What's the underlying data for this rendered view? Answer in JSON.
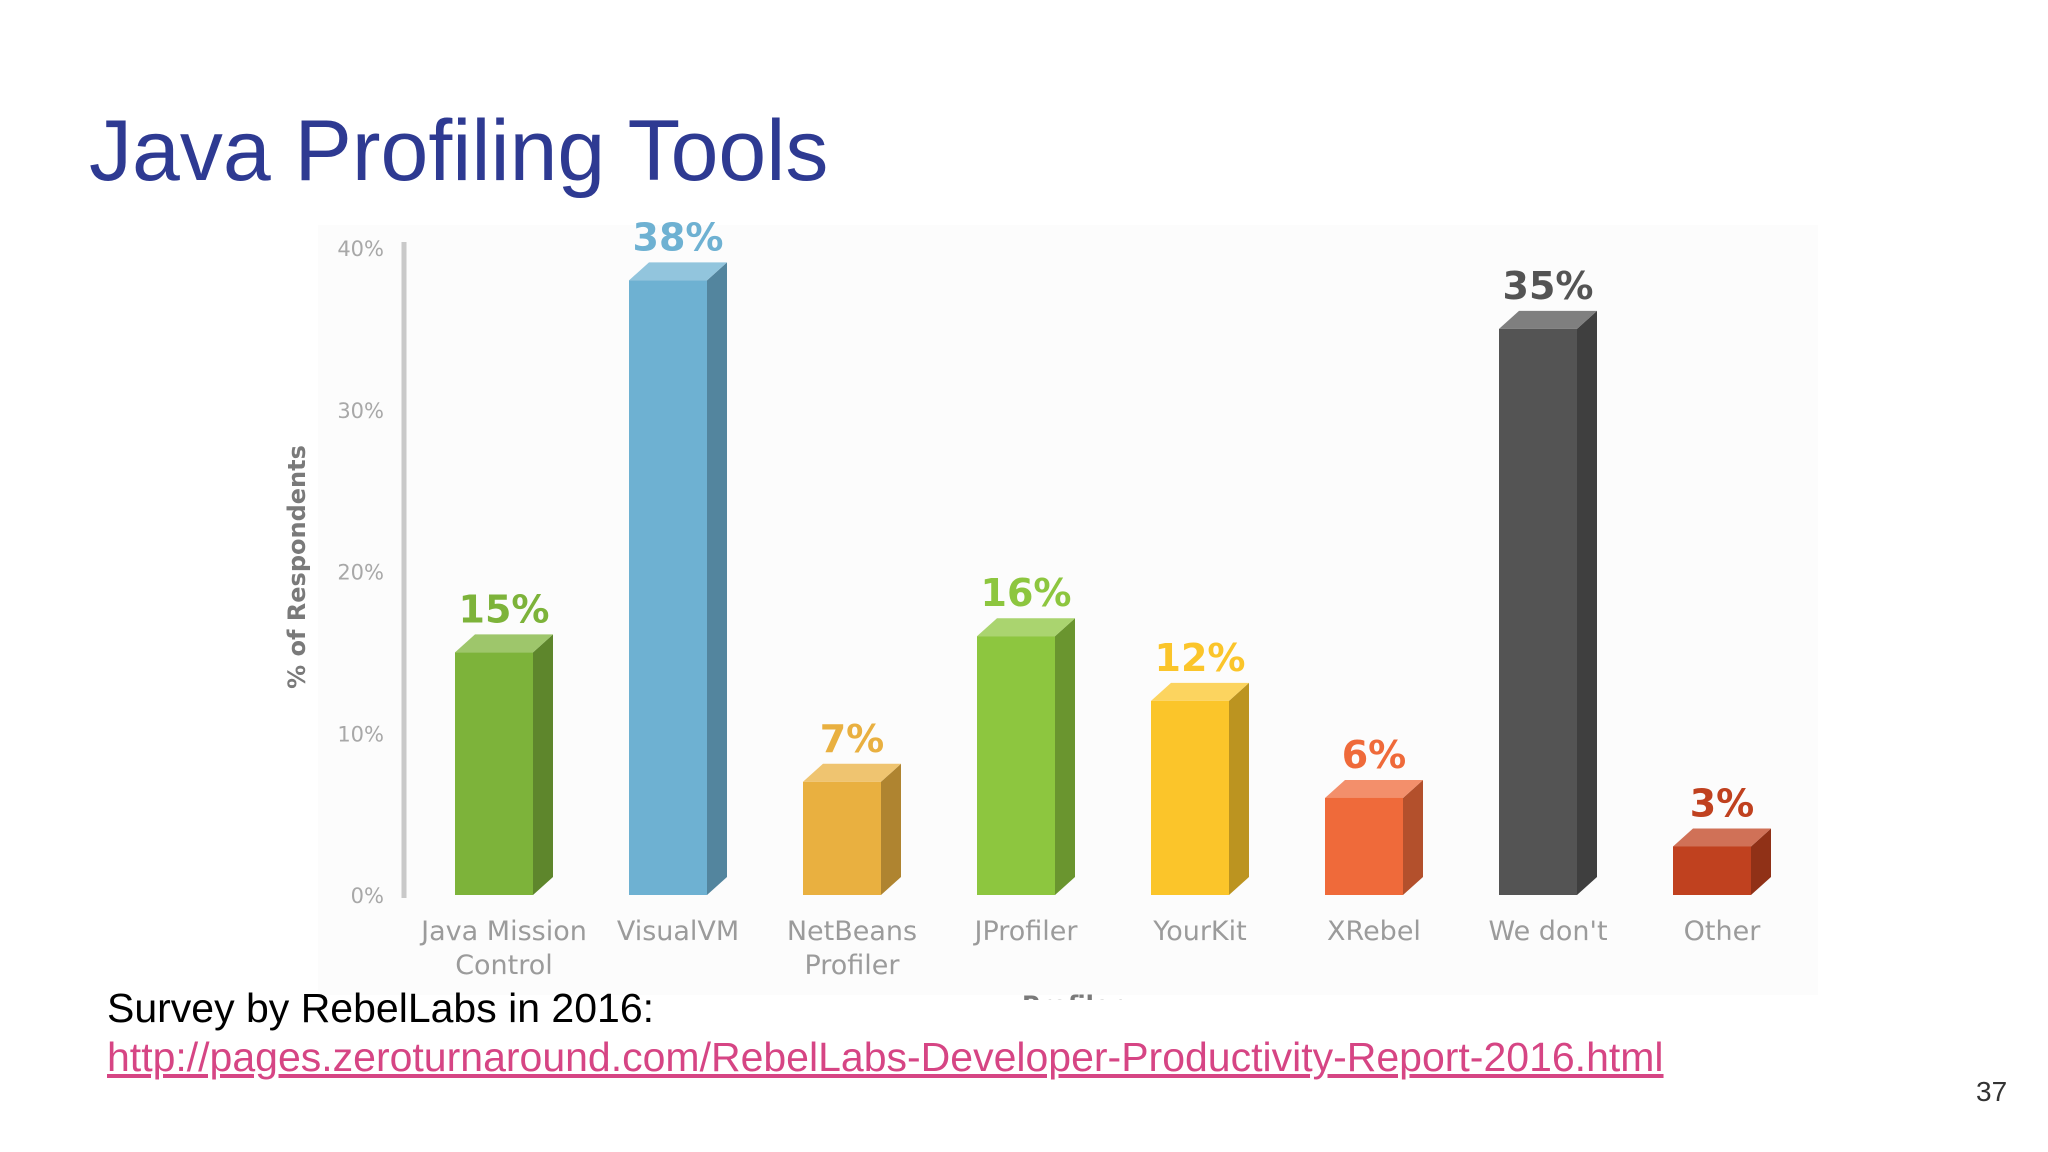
{
  "slide": {
    "title": "Java Profiling Tools",
    "source_label": "Survey by RebelLabs in 2016:",
    "source_link": "http://pages.zeroturnaround.com/RebelLabs-Developer-Productivity-Report-2016.html",
    "page_number": "37",
    "link_color": "#d64584",
    "title_color": "#2e3a92"
  },
  "chart_data": {
    "type": "bar",
    "title": "",
    "xlabel": "Profiler",
    "ylabel": "% of Respondents",
    "ylim": [
      0,
      40
    ],
    "yticks": [
      "0%",
      "10%",
      "20%",
      "30%",
      "40%"
    ],
    "grid": false,
    "categories": [
      [
        "Java Mission",
        "Control"
      ],
      [
        "VisualVM"
      ],
      [
        "NetBeans",
        "Profiler"
      ],
      [
        "JProfiler"
      ],
      [
        "YourKit"
      ],
      [
        "XRebel"
      ],
      [
        "We don't"
      ],
      [
        "Other"
      ]
    ],
    "values": [
      15,
      38,
      7,
      16,
      12,
      6,
      35,
      3
    ],
    "value_labels": [
      "15%",
      "38%",
      "7%",
      "16%",
      "12%",
      "6%",
      "35%",
      "3%"
    ],
    "colors": [
      "#7db33a",
      "#6eb1d2",
      "#e9b040",
      "#8dc63f",
      "#fbc52a",
      "#ef6a3a",
      "#545454",
      "#c0411f"
    ]
  }
}
